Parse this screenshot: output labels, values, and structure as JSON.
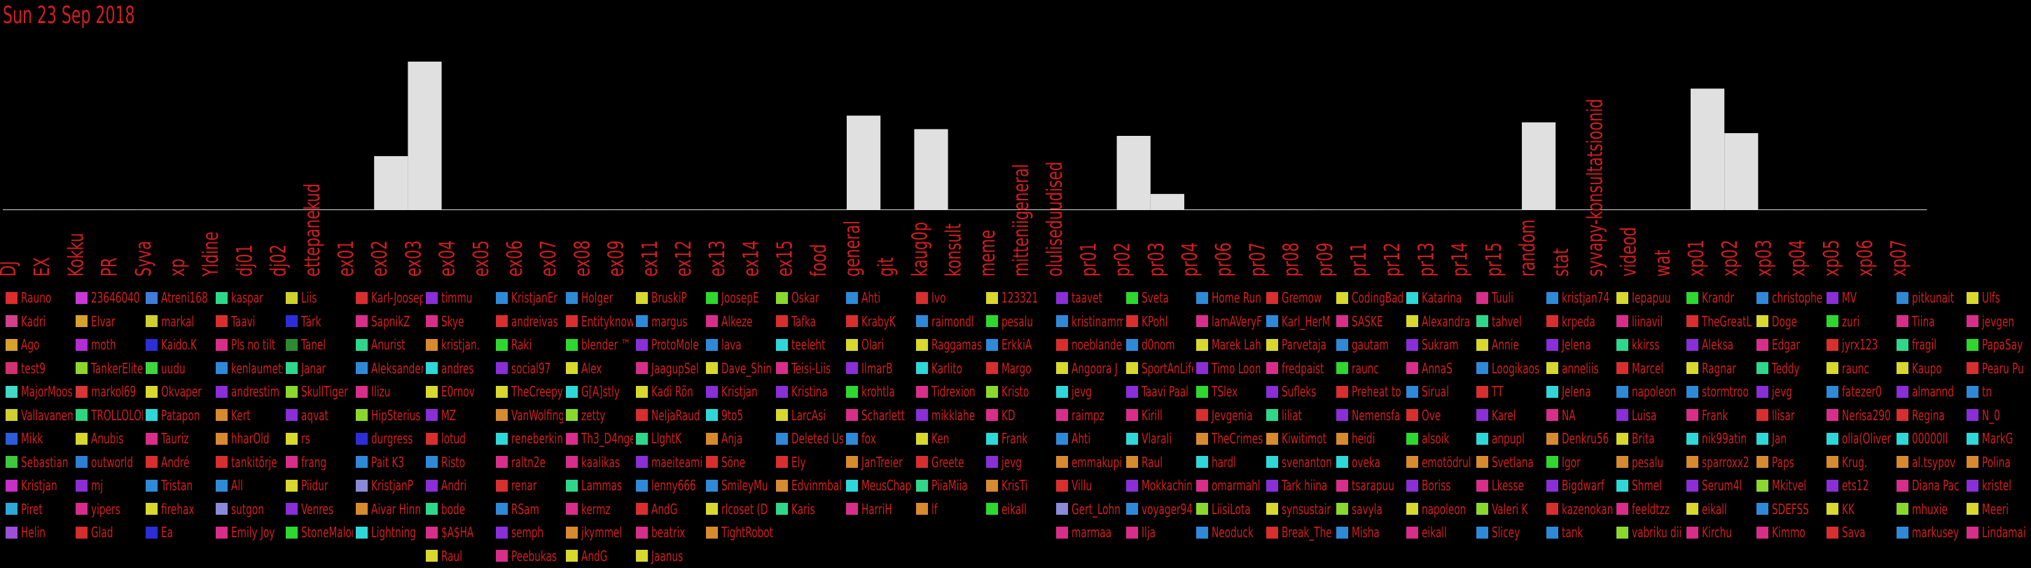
{
  "title": "Sun 23 Sep 2018",
  "colors": {
    "text": "#d21e1e",
    "bar": "#e0e0e0",
    "background": "#000000"
  },
  "chart_data": {
    "type": "bar",
    "categories": [
      "DJ",
      "EX",
      "Kokku",
      "PR",
      "Syva",
      "xp",
      "Yldine",
      "dj01",
      "dj02",
      "ettepanekud",
      "ex01",
      "ex02",
      "ex03",
      "ex04",
      "ex05",
      "ex06",
      "ex07",
      "ex08",
      "ex09",
      "ex11",
      "ex12",
      "ex13",
      "ex14",
      "ex15",
      "food",
      "general",
      "git",
      "kaug0p",
      "konsult",
      "meme",
      "mitteniigeneral",
      "oluliseduudised",
      "pr01",
      "pr02",
      "pr03",
      "pr04",
      "pr06",
      "pr07",
      "pr08",
      "pr09",
      "pr11",
      "pr12",
      "pr13",
      "pr14",
      "pr15",
      "random",
      "stat",
      "syvapy-konsultatsioonid",
      "videod",
      "wat",
      "xp01",
      "xp02",
      "xp03",
      "xp04",
      "xp05",
      "xp06",
      "xp07"
    ],
    "values": [
      0,
      0,
      0,
      0,
      0,
      0,
      0,
      0,
      0,
      0,
      0,
      4,
      11,
      0,
      0,
      0,
      0,
      0,
      0,
      0,
      0,
      0,
      0,
      0,
      0,
      7,
      0,
      6,
      0,
      0,
      0,
      0,
      0,
      5.5,
      1.2,
      0,
      0,
      0,
      0,
      0,
      0,
      0,
      0,
      0,
      0,
      6.5,
      0,
      0,
      0,
      0,
      9,
      5.7,
      0,
      0,
      0,
      0,
      0
    ],
    "ylim": [
      0,
      11
    ],
    "grid": false,
    "legend": "bottom"
  },
  "legend_columns": [
    {
      "names": [
        "Rauno",
        "Kadri",
        "Ago",
        "test9",
        "MajorMoose",
        "Vallavanem",
        "Mikk",
        "Sebastian",
        "Kristjan",
        "Piret",
        "Helin"
      ],
      "colors": [
        "#dd2c2c",
        "#d23f8a",
        "#d8a02c",
        "#d2306e",
        "#44d8c8",
        "#cfd22e",
        "#2c5cd8",
        "#3ec83e",
        "#c82ec8",
        "#2ea8d8",
        "#9c4fd8"
      ]
    },
    {
      "names": [
        "23646040",
        "Elvar",
        "moth",
        "TankerElite",
        "markol69",
        "TROLLOLOL",
        "Anubis",
        "outworld",
        "mj",
        "yipers",
        "Glad"
      ],
      "colors": [
        "#c938d6",
        "#d6a22c",
        "#b32cd6",
        "#8ed62c",
        "#d63636",
        "#2cd680",
        "#d6d62c",
        "#2c80d6",
        "#8e2cd6",
        "#d62c8e",
        "#d62c2c"
      ]
    },
    {
      "names": [
        "Atreni168",
        "markal",
        "Kaido.K",
        "uudu",
        "Okvaper",
        "Patapon",
        "Tauriz",
        "André",
        "Tristan",
        "firehax",
        "Ea"
      ],
      "colors": [
        "#3e7ed8",
        "#cfcf2e",
        "#2e2ed8",
        "#3ed83e",
        "#d8d82e",
        "#2ed8d8",
        "#d82e8a",
        "#d82e2e",
        "#2e8ad8",
        "#d8d82e",
        "#2e2ed8"
      ]
    },
    {
      "names": [
        "kaspar",
        "Taavi",
        "Pls no tilt",
        "kenlaumets",
        "andrestim",
        "Kert",
        "hharOld",
        "tankitõrje",
        "All",
        "sutgon",
        "Emily Joy"
      ],
      "colors": [
        "#2ed88a",
        "#d82e2e",
        "#d82e8a",
        "#2e8ad8",
        "#8a2ed8",
        "#d88a2e",
        "#d88a2e",
        "#d82e2e",
        "#2e8ad8",
        "#8a8ad8",
        "#d82e8a"
      ]
    },
    {
      "names": [
        "Liis",
        "Tärk",
        "Tanel",
        "Janar",
        "SkullTiger",
        "aqvat",
        "rs",
        "frang",
        "Piidur",
        "Venres",
        "StoneMalone"
      ],
      "colors": [
        "#cfd22e",
        "#2e2ed8",
        "#2e8a2e",
        "#2ed88a",
        "#8ad82e",
        "#8a2ed8",
        "#d8d82e",
        "#d82e8a",
        "#d8d82e",
        "#8a2ed8",
        "#2ed82e"
      ]
    },
    {
      "names": [
        "Karl-Joosep",
        "SapnikZ",
        "Anurist",
        "Aleksander",
        "Ilizu",
        "HipSterius",
        "durgress",
        "Pait K3",
        "KristjanP",
        "Aivar Hinn",
        "Lightning"
      ],
      "colors": [
        "#d82e2e",
        "#d82e8a",
        "#2ed88a",
        "#2e8ad8",
        "#d82e8a",
        "#8ad82e",
        "#2e2ed8",
        "#2e8ad8",
        "#8a8ad8",
        "#d88a2e",
        "#2ed8d8"
      ]
    },
    {
      "names": [
        "timmu",
        "Skye",
        "kristjan.",
        "andres",
        "E0rnov",
        "MZ",
        "lotud",
        "Risto",
        "Andri",
        "bode",
        "$A$HA",
        "Raul"
      ],
      "colors": [
        "#8a2ed8",
        "#d82e8a",
        "#d88a2e",
        "#2ed8d8",
        "#d8d82e",
        "#8a2ed8",
        "#d82e2e",
        "#2e8ad8",
        "#8a2ed8",
        "#2ed88a",
        "#d82e8a",
        "#d8d82e"
      ]
    },
    {
      "names": [
        "KristjanEr",
        "andreivas",
        "Raki",
        "social97",
        "TheCreepy",
        "VanWolfing",
        "reneberkin",
        "raltn2e",
        "renar",
        "RSam",
        "semph",
        "Peebukas"
      ],
      "colors": [
        "#2e8ad8",
        "#d82e2e",
        "#2ed82e",
        "#8a2ed8",
        "#d8d82e",
        "#d88a2e",
        "#2ed8d8",
        "#d82e8a",
        "#d82e2e",
        "#2e8ad8",
        "#8a2ed8",
        "#d82e8a"
      ]
    },
    {
      "names": [
        "Holger",
        "Entityknow",
        "blender ™",
        "Alex",
        "G[A]stly",
        "zetty",
        "Th3_D4nger",
        "kaalikas",
        "Lammas",
        "kermz",
        "jkymmel",
        "AndG"
      ],
      "colors": [
        "#2e8ad8",
        "#d82e2e",
        "#2ed82e",
        "#d8d82e",
        "#2ed8d8",
        "#8ad82e",
        "#d82e8a",
        "#d82e8a",
        "#2ed88a",
        "#d82e8a",
        "#d88a2e",
        "#d8d82e"
      ]
    },
    {
      "names": [
        "BruskiP",
        "margus",
        "ProtoMole",
        "JaagupSel",
        "Kadi Rõn",
        "NeljaRaud",
        "LlghtK",
        "maeiteami",
        "lenny666",
        "AndG",
        "beatrix",
        "Jaanus"
      ],
      "colors": [
        "#d8d82e",
        "#2e8ad8",
        "#8a2ed8",
        "#d82e8a",
        "#d8d82e",
        "#d82e2e",
        "#2ed88a",
        "#8a2ed8",
        "#2e8ad8",
        "#d82e2e",
        "#d82e8a",
        "#d8d82e"
      ]
    },
    {
      "names": [
        "JoosepE",
        "Alkeze",
        "lava",
        "Dave_Shin",
        "Kristjan",
        "9to5",
        "Anja",
        "Söne",
        "SmileyMu",
        "rlcoset (D",
        "TightRobot"
      ],
      "colors": [
        "#2ed82e",
        "#d82e8a",
        "#2e8ad8",
        "#d8d82e",
        "#8a2ed8",
        "#2ed8d8",
        "#d88a2e",
        "#d82e2e",
        "#2e8ad8",
        "#d8d82e",
        "#d88a2e"
      ]
    },
    {
      "names": [
        "Oskar",
        "Tafka",
        "teeleht",
        "Teisi-Liis",
        "Kristina",
        "LarcAsi",
        "Deleted Us",
        "Ely",
        "Edvinmbal",
        "Karis"
      ],
      "colors": [
        "#8ad82e",
        "#d82e2e",
        "#2ed8d8",
        "#d82e8a",
        "#8a2ed8",
        "#d8d82e",
        "#2e8ad8",
        "#d82e2e",
        "#d88a2e",
        "#2ed88a"
      ]
    },
    {
      "names": [
        "Ahti",
        "KrabyK",
        "Olari",
        "IlmarB",
        "krohtla",
        "Scharlett",
        "fox",
        "JanTreier",
        "MeusChap",
        "HarriH"
      ],
      "colors": [
        "#2e8ad8",
        "#d82e2e",
        "#d8d82e",
        "#8a2ed8",
        "#2ed82e",
        "#d82e8a",
        "#2e8ad8",
        "#d88a2e",
        "#2ed8d8",
        "#d82e8a"
      ]
    },
    {
      "names": [
        "Ivo",
        "raimondl",
        "Raggamas",
        "Karlito",
        "Tidrexion",
        "mikklahe",
        "Ken",
        "Greete",
        "PiiaMiia",
        "lf"
      ],
      "colors": [
        "#d82e2e",
        "#2e8ad8",
        "#d8d82e",
        "#2ed8d8",
        "#d82e8a",
        "#8a2ed8",
        "#d8d82e",
        "#d82e2e",
        "#2ed88a",
        "#d88a2e"
      ]
    },
    {
      "names": [
        "123321",
        "pesalu",
        "ErkkiA",
        "Margo",
        "Kristo",
        "KD",
        "Frank",
        "jevg",
        "KrisTi",
        "eikall"
      ],
      "colors": [
        "#d8d82e",
        "#2ed82e",
        "#2e8ad8",
        "#d82e2e",
        "#8ad82e",
        "#d82e8a",
        "#2ed8d8",
        "#8a2ed8",
        "#d88a2e",
        "#2ed82e"
      ]
    },
    {
      "names": [
        "taavet",
        "kristinamm",
        "noeblande",
        "Angoora J",
        "jevg",
        "raimpz",
        "Ahti",
        "emmakupi",
        "Villu",
        "Gert_Lohn",
        "marmaa"
      ],
      "colors": [
        "#8a2ed8",
        "#2e8ad8",
        "#d82e2e",
        "#d8d82e",
        "#2ed8d8",
        "#d82e8a",
        "#2e8ad8",
        "#d88a2e",
        "#d82e2e",
        "#8a8ad8",
        "#d82e8a"
      ]
    },
    {
      "names": [
        "Sveta",
        "KPohl",
        "d0nom",
        "SportAnLife",
        "Taavi Paal",
        "Kirill",
        "Vlarali",
        "Raul",
        "Mokkachin",
        "voyager94",
        "Ilja"
      ],
      "colors": [
        "#2ed82e",
        "#d82e2e",
        "#2e8ad8",
        "#d8d82e",
        "#8a2ed8",
        "#d82e8a",
        "#2ed8d8",
        "#d88a2e",
        "#8a2ed8",
        "#2e8ad8",
        "#d82e8a"
      ]
    },
    {
      "names": [
        "Home Run",
        "lamAVeryF",
        "Marek Lah",
        "Timo Loon",
        "TSlex",
        "Jevgenia",
        "TheCrimes",
        "hardl",
        "omarmahl",
        "LiisiLota",
        "Neoduck"
      ],
      "colors": [
        "#2e8ad8",
        "#d82e8a",
        "#d8d82e",
        "#8a2ed8",
        "#2ed82e",
        "#d82e2e",
        "#d88a2e",
        "#2ed8d8",
        "#d82e8a",
        "#8ad82e",
        "#2e8ad8"
      ]
    },
    {
      "names": [
        "Gremow",
        "Karl_HerM",
        "Parvetaja",
        "fredpaist",
        "Sufleks",
        "liliat",
        "Kiwitimot",
        "svenanton",
        "Tark hiina",
        "synsustair",
        "Break_The"
      ],
      "colors": [
        "#d82e2e",
        "#2e8ad8",
        "#d8d82e",
        "#d82e8a",
        "#8a2ed8",
        "#2ed88a",
        "#d88a2e",
        "#2ed8d8",
        "#8a2ed8",
        "#d8d82e",
        "#d82e2e"
      ]
    },
    {
      "names": [
        "CodingBad",
        "SASKE",
        "gautam",
        "raunc",
        "Preheat to",
        "Nemensfa",
        "heidi",
        "oveka",
        "tsarapuu",
        "savyla",
        "Misha"
      ],
      "colors": [
        "#d8d82e",
        "#d82e8a",
        "#2e8ad8",
        "#2ed82e",
        "#d82e2e",
        "#8a2ed8",
        "#d88a2e",
        "#2ed8d8",
        "#d82e8a",
        "#8ad82e",
        "#2e8ad8"
      ]
    },
    {
      "names": [
        "Katarina",
        "Alexandra",
        "Sukram",
        "AnnaS",
        "Sirual",
        "Ove",
        "alsoik",
        "emotödrul",
        "Boriss",
        "napoleon",
        "eikall"
      ],
      "colors": [
        "#2ed8d8",
        "#d8d82e",
        "#8a2ed8",
        "#d82e8a",
        "#2e8ad8",
        "#d82e2e",
        "#2ed82e",
        "#d88a2e",
        "#8a2ed8",
        "#d8d82e",
        "#d82e8a"
      ]
    },
    {
      "names": [
        "Tuuli",
        "tahvel",
        "Annie",
        "Loogikaos",
        "TT",
        "Karel",
        "anpupl",
        "Svetlana",
        "Lkesse",
        "Valeri K",
        "Slicey"
      ],
      "colors": [
        "#d82e8a",
        "#2ed88a",
        "#d8d82e",
        "#2e8ad8",
        "#d82e2e",
        "#8a2ed8",
        "#2ed8d8",
        "#d88a2e",
        "#d82e8a",
        "#8ad82e",
        "#2e8ad8"
      ]
    },
    {
      "names": [
        "kristjan74",
        "krpeda",
        "Jelena",
        "anneliis",
        "Jelena",
        "NA",
        "Denkru56",
        "Igor",
        "Bigdwarf",
        "kazenokan",
        "tank"
      ],
      "colors": [
        "#2e8ad8",
        "#d82e2e",
        "#8a2ed8",
        "#d8d82e",
        "#2ed8d8",
        "#d82e8a",
        "#d88a2e",
        "#2ed82e",
        "#8a2ed8",
        "#d82e2e",
        "#2e8ad8"
      ]
    },
    {
      "names": [
        "Iepapuu",
        "liinavil",
        "kkirss",
        "Marcel",
        "napoleon",
        "Luisa",
        "Brita",
        "pesalu",
        "Shmel",
        "feeldtzz",
        "vabriku dii"
      ],
      "colors": [
        "#d8d82e",
        "#d82e8a",
        "#2ed88a",
        "#d82e2e",
        "#2e8ad8",
        "#8a2ed8",
        "#d8d82e",
        "#d88a2e",
        "#2ed8d8",
        "#d82e8a",
        "#8ad82e"
      ]
    },
    {
      "names": [
        "Krandr",
        "TheGreatL",
        "Aleksa",
        "Ragnar",
        "stormtroo",
        "Frank",
        "nik99atin",
        "sparroxx2",
        "Serum4l",
        "eikall",
        "Kirchu"
      ],
      "colors": [
        "#2ed82e",
        "#d82e2e",
        "#8a2ed8",
        "#d8d82e",
        "#2e8ad8",
        "#d82e8a",
        "#2ed8d8",
        "#d88a2e",
        "#8a2ed8",
        "#d8d82e",
        "#d82e8a"
      ]
    },
    {
      "names": [
        "christophe",
        "Doge",
        "Edgar",
        "Teddy",
        "jevg",
        "llisar",
        "Jan",
        "Paps",
        "Mkitvel",
        "SDEFSS",
        "Kimmo"
      ],
      "colors": [
        "#2e8ad8",
        "#d8d82e",
        "#d82e8a",
        "#2ed88a",
        "#8a2ed8",
        "#d82e2e",
        "#2ed8d8",
        "#d88a2e",
        "#8ad82e",
        "#2e8ad8",
        "#d82e8a"
      ]
    },
    {
      "names": [
        "MV",
        "zuri",
        "jyrx123",
        "raunc",
        "fatezer0",
        "Nerisa290",
        "olla(Oliver",
        "Krug.",
        "ets12",
        "KK",
        "Sava"
      ],
      "colors": [
        "#8a2ed8",
        "#2ed82e",
        "#d82e2e",
        "#d8d82e",
        "#2e8ad8",
        "#d82e8a",
        "#2ed8d8",
        "#d88a2e",
        "#8a2ed8",
        "#d8d82e",
        "#d82e2e"
      ]
    },
    {
      "names": [
        "pitkunait",
        "Tiina",
        "fragil",
        "Kaupo",
        "almannd",
        "Regina",
        "00000Il",
        "al.tsypov",
        "Diana Pac",
        "mhuxie",
        "markusey"
      ],
      "colors": [
        "#2e8ad8",
        "#d82e8a",
        "#2ed88a",
        "#d8d82e",
        "#8a2ed8",
        "#d82e2e",
        "#2ed8d8",
        "#d88a2e",
        "#d82e8a",
        "#8ad82e",
        "#2e8ad8"
      ]
    },
    {
      "names": [
        "Ulfs",
        "jevgen",
        "PapaSay",
        "Pearu Pu",
        "tn",
        "N_0",
        "MarkG",
        "Polina",
        "kristel",
        "Meeri",
        "Lindamai"
      ],
      "colors": [
        "#d8d82e",
        "#d82e8a",
        "#2ed82e",
        "#d82e2e",
        "#2e8ad8",
        "#8a2ed8",
        "#2ed8d8",
        "#d88a2e",
        "#8a2ed8",
        "#d8d82e",
        "#d82e8a"
      ]
    }
  ]
}
